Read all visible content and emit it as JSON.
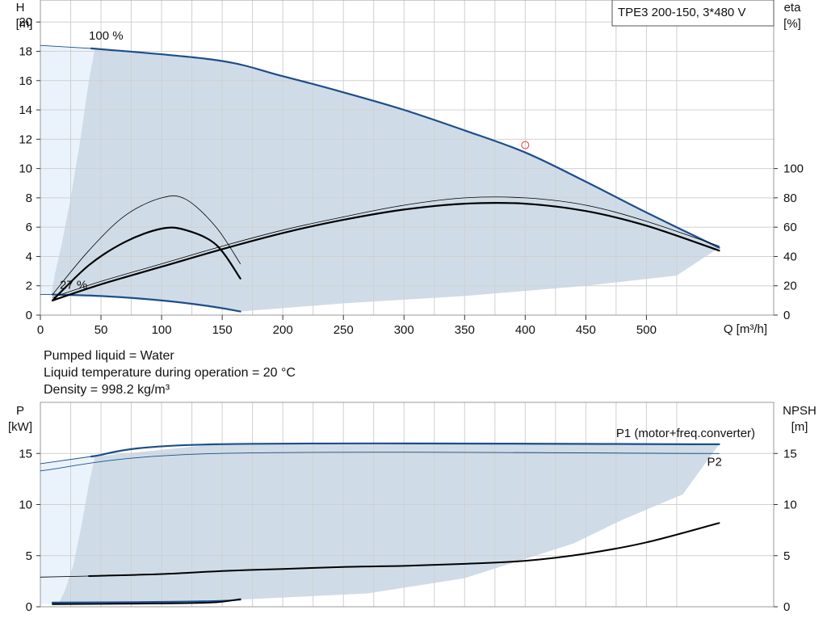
{
  "pump_label": "TPE3 200-150, 3*480 V",
  "liquid_info": [
    "Pumped liquid = Water",
    "Liquid temperature during operation = 20 °C",
    "Density = 998.2 kg/m³"
  ],
  "colors": {
    "curve_blue": "#1d4e89",
    "curve_black": "#000000",
    "range_fill": "#cfdce8",
    "range_fill_light": "#eaf3fb",
    "grid": "#d0d0d0",
    "duty_point": "#e04040"
  },
  "chart_data": [
    {
      "type": "line",
      "panel": "head-efficiency",
      "xlabel": "Q [m³/h]",
      "ylabel": "H",
      "ylabel_unit": "[m]",
      "y2label": "eta",
      "y2label_unit": "[%]",
      "xlim": [
        0,
        605
      ],
      "ylim": [
        0,
        21.5
      ],
      "y2lim": [
        0,
        215
      ],
      "x_ticks": [
        0,
        50,
        100,
        150,
        200,
        250,
        300,
        350,
        400,
        450,
        500
      ],
      "y_ticks": [
        0,
        2,
        4,
        6,
        8,
        10,
        12,
        14,
        16,
        18,
        20
      ],
      "y2_ticks": [
        0,
        20,
        40,
        60,
        80,
        100
      ],
      "annotations": [
        {
          "text": "100 %",
          "x": 40,
          "y": 18.8
        },
        {
          "text": "27 %",
          "x": 16,
          "y": 1.8
        }
      ],
      "duty_point": {
        "x": 400,
        "y": 11.6
      },
      "operating_range": {
        "outline": [
          [
            0,
            18.4
          ],
          [
            45,
            18.2
          ],
          [
            145,
            17.4
          ],
          [
            200,
            16.3
          ],
          [
            250,
            15.2
          ],
          [
            300,
            14.0
          ],
          [
            350,
            12.6
          ],
          [
            400,
            11.1
          ],
          [
            450,
            9.1
          ],
          [
            500,
            7.0
          ],
          [
            560,
            4.6
          ],
          [
            525,
            2.7
          ],
          [
            450,
            2.0
          ],
          [
            350,
            1.3
          ],
          [
            250,
            0.8
          ],
          [
            165,
            0.25
          ],
          [
            100,
            1.0
          ],
          [
            50,
            1.3
          ],
          [
            10,
            1.4
          ],
          [
            0,
            1.4
          ]
        ],
        "light_region": [
          [
            0,
            18.4
          ],
          [
            45,
            18.2
          ],
          [
            40,
            16
          ],
          [
            33,
            12
          ],
          [
            25,
            8
          ],
          [
            18,
            5
          ],
          [
            12,
            2.8
          ],
          [
            9,
            1.4
          ],
          [
            0,
            1.4
          ]
        ]
      },
      "series": [
        {
          "role": "head-max",
          "color": "#1d4e89",
          "width": 2.2,
          "points": [
            [
              42,
              18.2
            ],
            [
              145,
              17.4
            ],
            [
              200,
              16.3
            ],
            [
              250,
              15.2
            ],
            [
              300,
              14.0
            ],
            [
              350,
              12.6
            ],
            [
              400,
              11.1
            ],
            [
              450,
              9.1
            ],
            [
              500,
              7.0
            ],
            [
              560,
              4.6
            ]
          ]
        },
        {
          "role": "head-max-ext",
          "color": "#1d4e89",
          "width": 0.9,
          "points": [
            [
              0,
              18.4
            ],
            [
              42,
              18.2
            ]
          ]
        },
        {
          "role": "head-min",
          "color": "#1d4e89",
          "width": 2.2,
          "points": [
            [
              10,
              1.4
            ],
            [
              50,
              1.3
            ],
            [
              100,
              1.0
            ],
            [
              140,
              0.6
            ],
            [
              165,
              0.25
            ]
          ]
        },
        {
          "role": "head-min-ext",
          "color": "#1d4e89",
          "width": 0.9,
          "points": [
            [
              0,
              1.4
            ],
            [
              10,
              1.4
            ]
          ]
        },
        {
          "role": "eta-max-total",
          "color": "#000000",
          "width": 2.2,
          "points": [
            [
              10,
              1.0
            ],
            [
              50,
              2.1
            ],
            [
              100,
              3.3
            ],
            [
              150,
              4.5
            ],
            [
              200,
              5.6
            ],
            [
              250,
              6.5
            ],
            [
              300,
              7.2
            ],
            [
              350,
              7.6
            ],
            [
              400,
              7.6
            ],
            [
              450,
              7.1
            ],
            [
              500,
              6.1
            ],
            [
              560,
              4.4
            ]
          ]
        },
        {
          "role": "eta-max-hydraulic",
          "color": "#000000",
          "width": 0.8,
          "points": [
            [
              10,
              1.2
            ],
            [
              50,
              2.3
            ],
            [
              100,
              3.5
            ],
            [
              150,
              4.7
            ],
            [
              200,
              5.8
            ],
            [
              250,
              6.7
            ],
            [
              300,
              7.5
            ],
            [
              350,
              8.0
            ],
            [
              400,
              8.0
            ],
            [
              450,
              7.5
            ],
            [
              500,
              6.4
            ],
            [
              560,
              4.7
            ]
          ]
        },
        {
          "role": "eta-min-total",
          "color": "#000000",
          "width": 2.2,
          "points": [
            [
              10,
              1.0
            ],
            [
              40,
              3.4
            ],
            [
              70,
              5.0
            ],
            [
              100,
              5.9
            ],
            [
              120,
              5.8
            ],
            [
              145,
              4.8
            ],
            [
              165,
              2.5
            ]
          ]
        },
        {
          "role": "eta-min-hydraulic",
          "color": "#000000",
          "width": 0.8,
          "points": [
            [
              10,
              1.4
            ],
            [
              40,
              4.4
            ],
            [
              70,
              6.8
            ],
            [
              100,
              8.0
            ],
            [
              120,
              7.9
            ],
            [
              145,
              6.0
            ],
            [
              165,
              3.5
            ]
          ]
        }
      ]
    },
    {
      "type": "line",
      "panel": "power-npsh",
      "ylabel": "P",
      "ylabel_unit": "[kW]",
      "y2label": "NPSH",
      "y2label_unit": "[m]",
      "xlim": [
        0,
        605
      ],
      "ylim": [
        0,
        20
      ],
      "y2lim": [
        0,
        20
      ],
      "y_ticks": [
        0,
        5,
        10,
        15
      ],
      "y2_ticks": [
        0,
        5,
        10,
        15
      ],
      "legend": [
        {
          "text": "P1 (motor+freq.converter)",
          "x": 475,
          "y": 16.6
        },
        {
          "text": "P2",
          "x": 550,
          "y": 13.8
        }
      ],
      "operating_range": {
        "outline": [
          [
            0,
            14.0
          ],
          [
            45,
            14.7
          ],
          [
            145,
            15.9
          ],
          [
            560,
            15.9
          ],
          [
            530,
            11.0
          ],
          [
            480,
            8.5
          ],
          [
            440,
            6.2
          ],
          [
            350,
            2.8
          ],
          [
            270,
            1.3
          ],
          [
            165,
            0.7
          ],
          [
            100,
            0.5
          ],
          [
            20,
            0.3
          ],
          [
            0,
            0.3
          ]
        ],
        "light_region": [
          [
            0,
            14.0
          ],
          [
            45,
            14.7
          ],
          [
            40,
            12.0
          ],
          [
            34,
            8.0
          ],
          [
            27,
            4.0
          ],
          [
            20,
            1.5
          ],
          [
            15,
            0.3
          ],
          [
            0,
            0.3
          ]
        ]
      },
      "series": [
        {
          "name": "P1 (motor+freq.converter)",
          "color": "#1d4e89",
          "width": 2.2,
          "points": [
            [
              42,
              14.7
            ],
            [
              145,
              15.9
            ],
            [
              560,
              15.9
            ]
          ]
        },
        {
          "role": "p1-ext",
          "color": "#1d4e89",
          "width": 0.9,
          "points": [
            [
              0,
              14.0
            ],
            [
              42,
              14.7
            ]
          ]
        },
        {
          "name": "P2",
          "color": "#1d4e89",
          "width": 0.9,
          "points": [
            [
              0,
              13.3
            ],
            [
              145,
              15.0
            ],
            [
              560,
              15.0
            ]
          ]
        },
        {
          "role": "npsh",
          "color": "#000000",
          "width": 2.0,
          "points": [
            [
              40,
              3.0
            ],
            [
              100,
              3.2
            ],
            [
              150,
              3.5
            ],
            [
              200,
              3.7
            ],
            [
              250,
              3.9
            ],
            [
              300,
              4.0
            ],
            [
              350,
              4.2
            ],
            [
              400,
              4.5
            ],
            [
              450,
              5.2
            ],
            [
              500,
              6.3
            ],
            [
              560,
              8.2
            ]
          ]
        },
        {
          "role": "npsh-ext",
          "color": "#000000",
          "width": 0.8,
          "points": [
            [
              0,
              2.9
            ],
            [
              40,
              3.0
            ]
          ]
        },
        {
          "role": "power-min",
          "color": "#1d4e89",
          "width": 2.2,
          "points": [
            [
              10,
              0.4
            ],
            [
              80,
              0.45
            ],
            [
              145,
              0.55
            ],
            [
              165,
              0.7
            ]
          ]
        },
        {
          "role": "power-min-2",
          "color": "#000000",
          "width": 1.8,
          "points": [
            [
              10,
              0.25
            ],
            [
              80,
              0.3
            ],
            [
              140,
              0.4
            ],
            [
              165,
              0.75
            ]
          ]
        }
      ]
    }
  ]
}
